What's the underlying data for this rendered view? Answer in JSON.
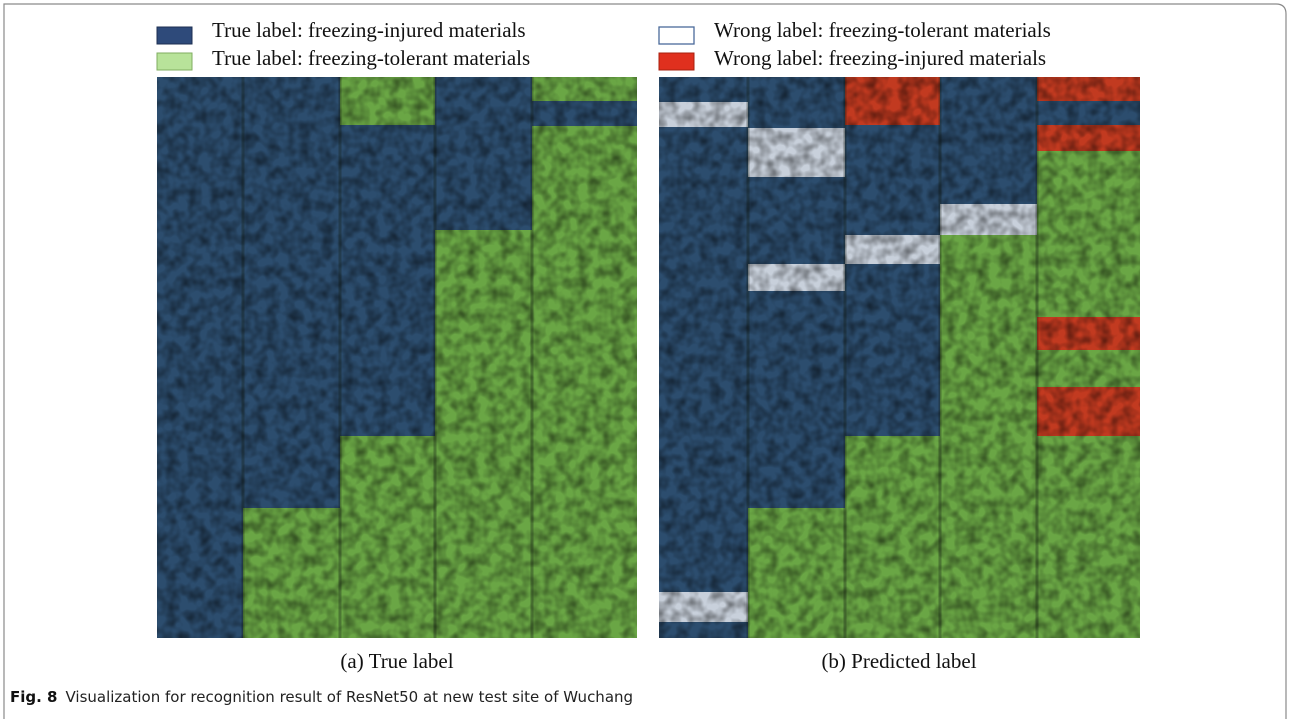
{
  "legend": [
    {
      "label": "True label: freezing-injured materials"
    },
    {
      "label": "True label: freezing-tolerant materials"
    },
    {
      "label": "Wrong  label: freezing-tolerant materials"
    },
    {
      "label": "Wrong  label: freezing-injured materials"
    }
  ],
  "panels": [
    {
      "caption": "(a) True label"
    },
    {
      "caption": "(b) Predicted label"
    }
  ],
  "figure_caption": {
    "label": "Fig. 8",
    "text": "Visualization for recognition result of ResNet50 at new test site of Wuchang"
  }
}
